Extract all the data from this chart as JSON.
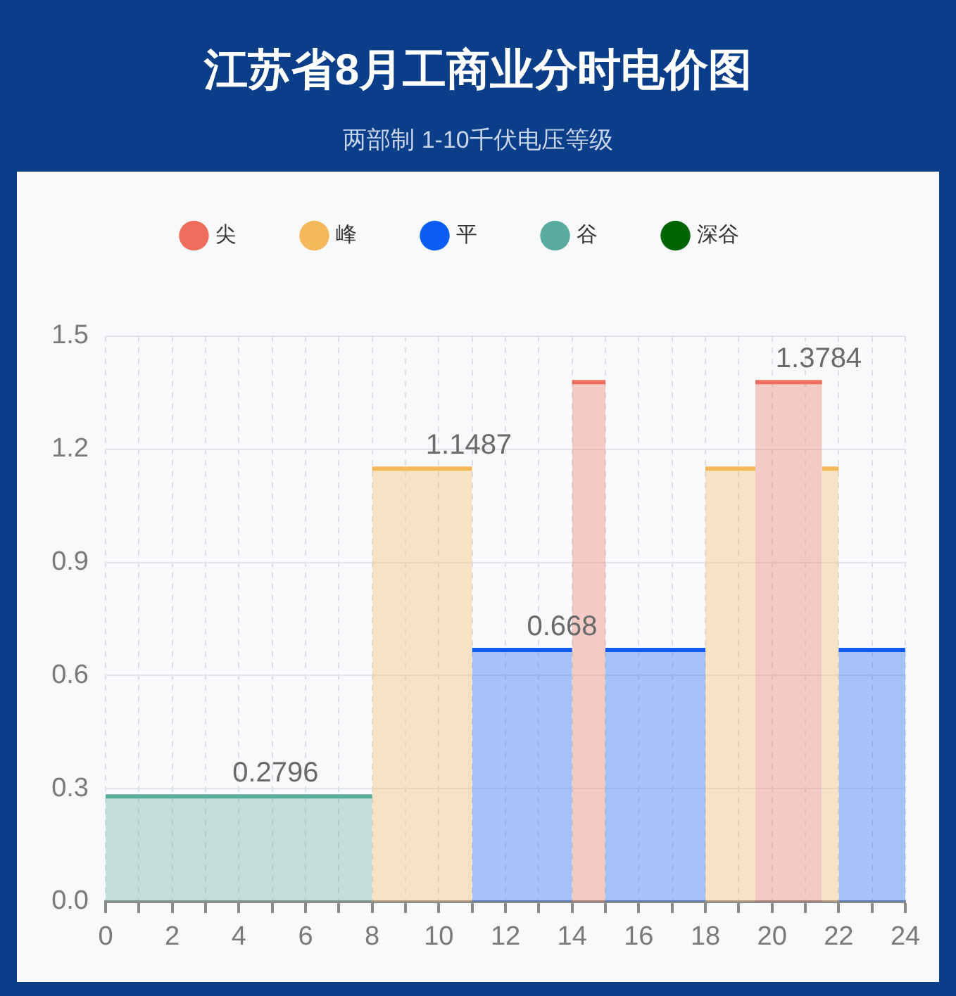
{
  "chart_data": {
    "type": "area",
    "title": "江苏省8月工商业分时电价图",
    "subtitle": "两部制 1-10千伏电压等级",
    "xlim": [
      0,
      24
    ],
    "xticks": [
      0,
      {
        "value": 1,
        "label": null
      },
      2,
      {
        "value": 3,
        "label": null
      },
      4,
      {
        "value": 5,
        "label": null
      },
      6,
      {
        "value": 7,
        "label": null
      },
      8,
      {
        "value": 9,
        "label": null
      },
      10,
      {
        "value": 11,
        "label": null
      },
      12,
      {
        "value": 13,
        "label": null
      },
      14,
      {
        "value": 15,
        "label": null
      },
      16,
      {
        "value": 17,
        "label": null
      },
      18,
      {
        "value": 19,
        "label": null
      },
      20,
      {
        "value": 21,
        "label": null
      },
      22,
      {
        "value": 23,
        "label": null
      },
      24
    ],
    "ylim": [
      0,
      1.5
    ],
    "yticks": [
      {
        "value": 0,
        "label": "0.0"
      },
      0.3,
      0.6,
      0.9,
      1.2,
      1.5
    ],
    "grid": true,
    "legend": "top",
    "series": [
      {
        "name": "尖",
        "color": "#ee6e5e",
        "x": [
          14,
          15,
          null,
          19.5,
          21.5
        ],
        "values": [
          1.3784,
          1.3784,
          null,
          1.3784,
          1.3784
        ]
      },
      {
        "name": "峰",
        "color": "#f5b85a",
        "x": [
          8,
          11,
          null,
          18,
          19.5,
          null,
          21.5,
          22
        ],
        "values": [
          1.1487,
          1.1487,
          null,
          1.1487,
          1.1487,
          null,
          1.1487,
          1.1487
        ]
      },
      {
        "name": "平",
        "color": "#0a5cf5",
        "x": [
          11,
          14,
          null,
          15,
          18,
          null,
          22,
          24
        ],
        "values": [
          0.668,
          0.668,
          null,
          0.668,
          0.668,
          null,
          0.668,
          0.668
        ]
      },
      {
        "name": "谷",
        "color": "#5aab9f",
        "x": [
          0,
          8
        ],
        "values": [
          0.2796,
          0.2796
        ]
      },
      {
        "name": "深谷",
        "color": "#006400"
      }
    ],
    "annotations": [
      {
        "text": "0.2796",
        "x": 5.1,
        "y": 0.2796
      },
      {
        "text": "1.1487",
        "x": 10.9,
        "y": 1.1487
      },
      {
        "text": "0.668",
        "x": 13.7,
        "y": 0.668
      },
      {
        "text": "1.3784",
        "x": 21.4,
        "y": 1.3784
      }
    ]
  }
}
